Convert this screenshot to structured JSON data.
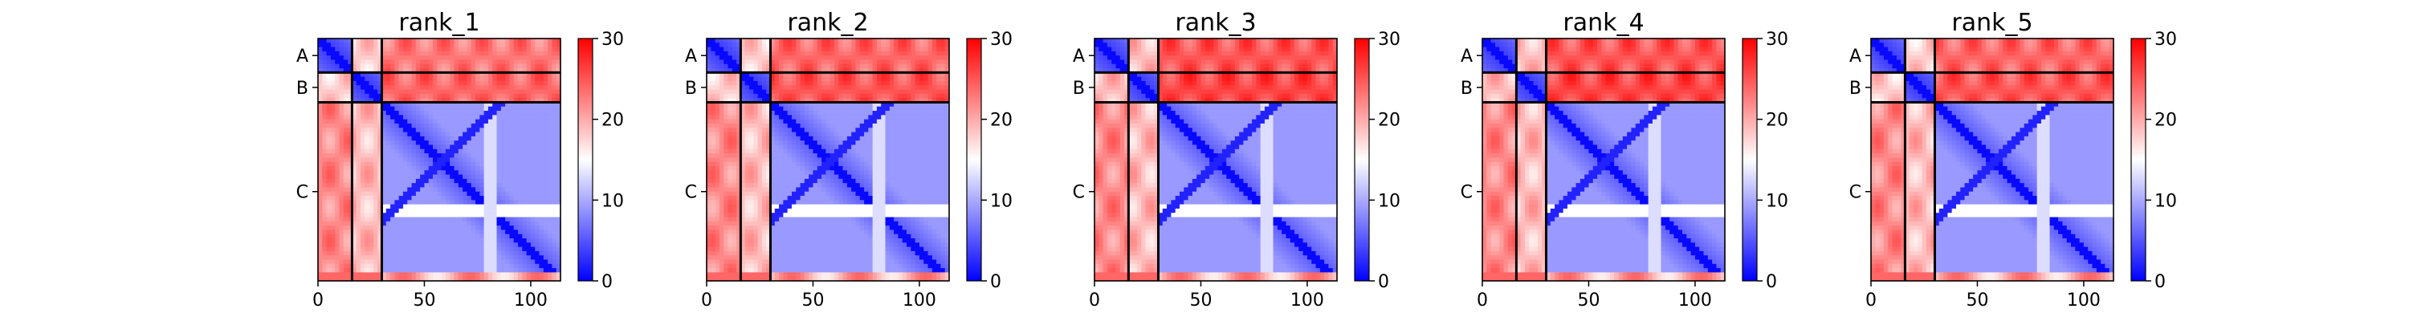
{
  "chart_data": [
    {
      "type": "heatmap",
      "title": "rank_1",
      "xlabel": "",
      "ylabel": "",
      "x_ticks": [
        "0",
        "50",
        "100"
      ],
      "xlim": [
        0,
        114
      ],
      "ylim": [
        114,
        0
      ],
      "chain_labels": [
        "A",
        "B",
        "C"
      ],
      "chain_boundaries": [
        0,
        16,
        30,
        114
      ],
      "colorbar": {
        "ticks": [
          "0",
          "10",
          "20",
          "30"
        ],
        "range": [
          0,
          30
        ],
        "colormap": "bwr"
      },
      "mean_block_values": [
        [
          3,
          18,
          23
        ],
        [
          18,
          3,
          24
        ],
        [
          22,
          19,
          5
        ]
      ]
    },
    {
      "type": "heatmap",
      "title": "rank_2",
      "xlabel": "",
      "ylabel": "",
      "x_ticks": [
        "0",
        "50",
        "100"
      ],
      "xlim": [
        0,
        114
      ],
      "ylim": [
        114,
        0
      ],
      "chain_labels": [
        "A",
        "B",
        "C"
      ],
      "chain_boundaries": [
        0,
        16,
        30,
        114
      ],
      "colorbar": {
        "ticks": [
          "0",
          "10",
          "20",
          "30"
        ],
        "range": [
          0,
          30
        ],
        "colormap": "bwr"
      },
      "mean_block_values": [
        [
          3,
          18,
          24
        ],
        [
          18,
          3,
          25
        ],
        [
          22,
          19,
          5
        ]
      ]
    },
    {
      "type": "heatmap",
      "title": "rank_3",
      "xlabel": "",
      "ylabel": "",
      "x_ticks": [
        "0",
        "50",
        "100"
      ],
      "xlim": [
        0,
        114
      ],
      "ylim": [
        114,
        0
      ],
      "chain_labels": [
        "A",
        "B",
        "C"
      ],
      "chain_boundaries": [
        0,
        16,
        30,
        114
      ],
      "colorbar": {
        "ticks": [
          "0",
          "10",
          "20",
          "30"
        ],
        "range": [
          0,
          30
        ],
        "colormap": "bwr"
      },
      "mean_block_values": [
        [
          3,
          19,
          25
        ],
        [
          19,
          3,
          26
        ],
        [
          22,
          19,
          5
        ]
      ]
    },
    {
      "type": "heatmap",
      "title": "rank_4",
      "xlabel": "",
      "ylabel": "",
      "x_ticks": [
        "0",
        "50",
        "100"
      ],
      "xlim": [
        0,
        114
      ],
      "ylim": [
        114,
        0
      ],
      "chain_labels": [
        "A",
        "B",
        "C"
      ],
      "chain_boundaries": [
        0,
        16,
        30,
        114
      ],
      "colorbar": {
        "ticks": [
          "0",
          "10",
          "20",
          "30"
        ],
        "range": [
          0,
          30
        ],
        "colormap": "bwr"
      },
      "mean_block_values": [
        [
          3,
          19,
          25
        ],
        [
          19,
          3,
          26
        ],
        [
          22,
          19,
          5
        ]
      ]
    },
    {
      "type": "heatmap",
      "title": "rank_5",
      "xlabel": "",
      "ylabel": "",
      "x_ticks": [
        "0",
        "50",
        "100"
      ],
      "xlim": [
        0,
        114
      ],
      "ylim": [
        114,
        0
      ],
      "chain_labels": [
        "A",
        "B",
        "C"
      ],
      "chain_boundaries": [
        0,
        16,
        30,
        114
      ],
      "colorbar": {
        "ticks": [
          "0",
          "10",
          "20",
          "30"
        ],
        "range": [
          0,
          30
        ],
        "colormap": "bwr"
      },
      "mean_block_values": [
        [
          3,
          18,
          24
        ],
        [
          18,
          3,
          25
        ],
        [
          22,
          19,
          5
        ]
      ]
    }
  ]
}
